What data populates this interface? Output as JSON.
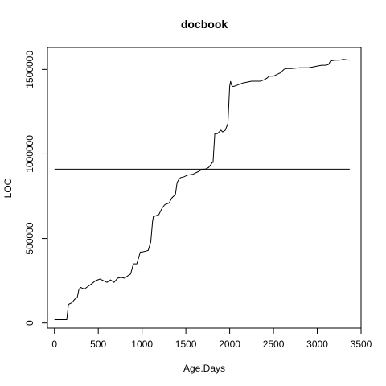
{
  "chart_data": {
    "type": "line",
    "title": "docbook",
    "xlabel": "Age.Days",
    "ylabel": "LOC",
    "xlim": [
      -80,
      3500
    ],
    "ylim": [
      -30000,
      1630000
    ],
    "x_ticks": [
      0,
      500,
      1000,
      1500,
      2000,
      2500,
      3000,
      3500
    ],
    "y_ticks": [
      0,
      500000,
      1000000,
      1500000
    ],
    "x_tick_labels": [
      "0",
      "500",
      "1000",
      "1500",
      "2000",
      "2500",
      "3000",
      "3500"
    ],
    "y_tick_labels": [
      "0",
      "500000",
      "1000000",
      "1500000"
    ],
    "grid": false,
    "reference_line": {
      "y": 910000,
      "x_from": 0,
      "x_to": 3370
    },
    "series": [
      {
        "x": [
          0,
          140,
          160,
          200,
          230,
          260,
          280,
          300,
          340,
          380,
          420,
          470,
          520,
          560,
          600,
          640,
          680,
          720,
          760,
          800,
          840,
          870,
          900,
          940,
          980,
          1000,
          1040,
          1070,
          1100,
          1120,
          1130,
          1140,
          1160,
          1190,
          1230,
          1260,
          1310,
          1340,
          1360,
          1380,
          1400,
          1420,
          1440,
          1480,
          1520,
          1580,
          1640,
          1690,
          1720,
          1760,
          1790,
          1800,
          1810,
          1830,
          1860,
          1880,
          1900,
          1920,
          1950,
          1980,
          2000,
          2010,
          2020,
          2030,
          2050,
          2100,
          2150,
          2200,
          2250,
          2300,
          2350,
          2400,
          2430,
          2450,
          2500,
          2540,
          2580,
          2620,
          2650,
          2700,
          2800,
          2900,
          2950,
          3000,
          3050,
          3100,
          3130,
          3150,
          3200,
          3250,
          3300,
          3370
        ],
        "y": [
          20000,
          20000,
          110000,
          120000,
          140000,
          150000,
          200000,
          210000,
          200000,
          215000,
          230000,
          250000,
          260000,
          250000,
          240000,
          255000,
          240000,
          265000,
          270000,
          265000,
          280000,
          290000,
          350000,
          350000,
          420000,
          420000,
          425000,
          430000,
          480000,
          600000,
          630000,
          630000,
          635000,
          640000,
          680000,
          700000,
          710000,
          740000,
          750000,
          760000,
          830000,
          850000,
          860000,
          865000,
          875000,
          880000,
          895000,
          910000,
          910000,
          920000,
          940000,
          950000,
          950000,
          1120000,
          1120000,
          1130000,
          1140000,
          1130000,
          1140000,
          1180000,
          1400000,
          1430000,
          1410000,
          1400000,
          1400000,
          1410000,
          1420000,
          1425000,
          1430000,
          1430000,
          1430000,
          1440000,
          1450000,
          1460000,
          1460000,
          1470000,
          1480000,
          1500000,
          1505000,
          1505000,
          1510000,
          1510000,
          1515000,
          1520000,
          1525000,
          1525000,
          1530000,
          1550000,
          1555000,
          1555000,
          1560000,
          1555000
        ]
      }
    ]
  }
}
